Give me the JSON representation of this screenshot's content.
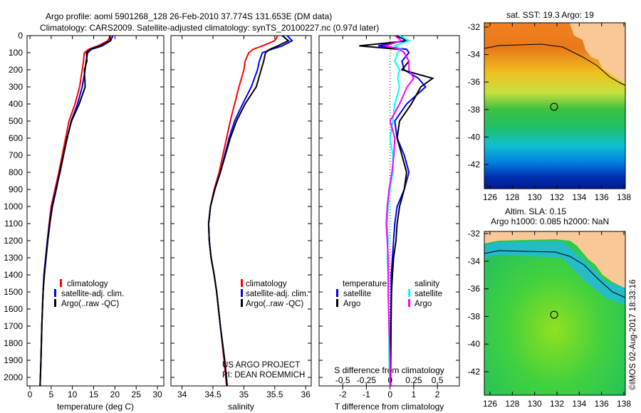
{
  "title_line1": "Argo profile: aoml 5901268_128 26-Feb-2010 37.774S 131.653E (DM data)",
  "title_line2": "Climatology: CARS2009. Satellite-adjusted climatology: synTS_20100227.nc (0.97d later)",
  "colors": {
    "climatology": "#ff0000",
    "satellite": "#0000ff",
    "argo": "#000000",
    "sal_satellite": "#00ffff",
    "sal_argo": "#ff00ff",
    "land": "#f9c896"
  },
  "depth_ticks": [
    0,
    100,
    200,
    300,
    400,
    500,
    600,
    700,
    800,
    900,
    1000,
    1100,
    1200,
    1300,
    1400,
    1500,
    1600,
    1700,
    1800,
    1900,
    2000
  ],
  "credit": {
    "line1": "US ARGO PROJECT",
    "line2": "PI: DEAN ROEMMICH"
  },
  "legend_profiles": [
    "climatology",
    "satellite-adj. clim.",
    "Argo(..raw -QC)"
  ],
  "legend_diff": {
    "temperature": "temperature",
    "salinity": "salinity",
    "satellite": "satellite",
    "argo": "Argo"
  },
  "map_top": {
    "title": "sat. SST: 19.3 Argo: 19",
    "lat_ticks": [
      -32,
      -34,
      -36,
      -38,
      -40,
      -42
    ],
    "lon_ticks": [
      126,
      128,
      130,
      132,
      134,
      136,
      138
    ]
  },
  "map_bottom": {
    "title1": "Altim. SLA: 0.15",
    "title2": "Argo h1000: 0.085 h2000: NaN",
    "lat_ticks": [
      -32,
      -34,
      -36,
      -38,
      -40,
      -42
    ],
    "lon_ticks": [
      126,
      128,
      130,
      132,
      134,
      136,
      138
    ]
  },
  "argo_position": {
    "lat": -37.774,
    "lon": 131.653
  },
  "timestamp": "©IMOS 02-Aug-2017 18:33:16",
  "chart_data": [
    {
      "type": "line",
      "xlabel": "temperature (deg C)",
      "ylabel": "depth",
      "xlim": [
        -0.67,
        31.5
      ],
      "ylim": [
        2050,
        0
      ],
      "xticks": [
        0,
        5,
        10,
        15,
        20,
        25,
        30
      ],
      "depth": [
        0,
        30,
        60,
        80,
        100,
        150,
        200,
        300,
        400,
        500,
        600,
        700,
        800,
        900,
        1000,
        1100,
        1200,
        1300,
        1400,
        1500,
        1700,
        1900,
        2050
      ],
      "series": [
        {
          "name": "climatology",
          "values": [
            19,
            18.3,
            16,
            13.8,
            12.8,
            12.6,
            12.3,
            11.7,
            10.6,
            9.2,
            8.4,
            7.6,
            6.8,
            5.9,
            5.0,
            4.5,
            4.1,
            3.7,
            3.3,
            3.1,
            2.8,
            2.6,
            2.4
          ]
        },
        {
          "name": "satellite-adj. clim.",
          "values": [
            19.5,
            19,
            17,
            14.5,
            13.6,
            13.2,
            13,
            12.3,
            11.2,
            9.7,
            8.8,
            7.9,
            7.1,
            6.1,
            5.2,
            4.6,
            4.1,
            3.7,
            3.3,
            3.1,
            2.8,
            2.6,
            2.4
          ]
        },
        {
          "name": "Argo(..raw -QC)",
          "values": [
            18.8,
            18.9,
            16.5,
            14.2,
            13.3,
            13.4,
            12.8,
            13,
            11.6,
            9.8,
            8.7,
            7.9,
            7.0,
            6.2,
            5.3,
            4.7,
            4.2,
            3.8,
            3.4,
            3.1,
            2.8,
            2.6,
            2.4
          ]
        }
      ]
    },
    {
      "type": "line",
      "xlabel": "salinity",
      "ylabel": "depth",
      "xlim": [
        33.82,
        36.09
      ],
      "ylim": [
        2050,
        0
      ],
      "xticks": [
        34,
        34.5,
        35,
        35.5,
        36
      ],
      "depth": [
        0,
        30,
        60,
        80,
        100,
        150,
        200,
        300,
        400,
        500,
        600,
        700,
        800,
        900,
        1000,
        1100,
        1200,
        1300,
        1400,
        1500,
        1700,
        1900,
        2050
      ],
      "series": [
        {
          "name": "climatology",
          "values": [
            35.55,
            35.5,
            35.3,
            35.15,
            35.08,
            35.02,
            35.0,
            34.92,
            34.85,
            34.78,
            34.72,
            34.66,
            34.6,
            34.52,
            34.46,
            34.43,
            34.44,
            34.47,
            34.52,
            34.56,
            34.62,
            34.68,
            34.72
          ]
        },
        {
          "name": "satellite-adj. clim.",
          "values": [
            35.7,
            35.78,
            35.62,
            35.45,
            35.3,
            35.25,
            35.22,
            35.12,
            34.98,
            34.85,
            34.76,
            34.69,
            34.62,
            34.53,
            34.46,
            34.43,
            34.44,
            34.47,
            34.52,
            34.56,
            34.62,
            34.69,
            34.73
          ]
        },
        {
          "name": "Argo(..raw -QC)",
          "values": [
            35.62,
            35.72,
            35.55,
            35.42,
            35.35,
            35.32,
            35.28,
            35.2,
            35.02,
            34.88,
            34.78,
            34.7,
            34.62,
            34.53,
            34.46,
            34.43,
            34.44,
            34.47,
            34.52,
            34.56,
            34.62,
            34.69,
            34.73
          ]
        }
      ]
    },
    {
      "type": "line",
      "xlabel": "T difference from climatology",
      "x2label": "S difference from climatology",
      "xlim": [
        -3,
        2.93
      ],
      "ylim": [
        2050,
        0
      ],
      "xticks": [
        -2,
        -1,
        0,
        1,
        2
      ],
      "x2ticks": [
        -0.5,
        -0.25,
        0,
        0.25,
        0.5
      ],
      "depth": [
        0,
        30,
        60,
        80,
        100,
        150,
        200,
        250,
        300,
        400,
        500,
        600,
        700,
        800,
        900,
        1000,
        1100,
        1200,
        1300,
        1400,
        1500,
        1700,
        1900,
        2050
      ],
      "series": [
        {
          "name": "temperature satellite",
          "values": [
            0.5,
            0.6,
            -0.5,
            0.7,
            0.8,
            0.5,
            0.6,
            1.2,
            1.5,
            0.7,
            0.2,
            0.3,
            0.6,
            0.8,
            0.6,
            0.3,
            0.2,
            0.15,
            0.1,
            0.05,
            0.05,
            0.03,
            0.02,
            0.02
          ]
        },
        {
          "name": "temperature Argo",
          "values": [
            0.2,
            0.8,
            -1.3,
            0.4,
            0.6,
            0.8,
            0.5,
            1.8,
            1.3,
            0.9,
            0.4,
            0.3,
            0.5,
            0.7,
            0.6,
            0.4,
            0.3,
            0.25,
            0.15,
            0.1,
            0.06,
            0.04,
            0.03,
            0.02
          ]
        },
        {
          "name": "salinity satellite",
          "values": [
            0.1,
            0.2,
            0.05,
            0.12,
            0.08,
            0.05,
            0.1,
            0.08,
            0.1,
            0.05,
            0.03,
            0.0,
            0.03,
            0.03,
            0.0,
            -0.02,
            -0.03,
            -0.02,
            -0.03,
            -0.02,
            -0.02,
            -0.01,
            -0.01,
            0.0
          ]
        },
        {
          "name": "salinity Argo",
          "values": [
            0.05,
            0.12,
            -0.05,
            0.1,
            0.15,
            0.2,
            0.2,
            0.25,
            0.18,
            0.1,
            0.0,
            0.05,
            0.04,
            0.02,
            -0.01,
            -0.03,
            -0.04,
            -0.03,
            -0.02,
            -0.02,
            -0.02,
            -0.01,
            0.0,
            0.0
          ]
        }
      ]
    }
  ]
}
